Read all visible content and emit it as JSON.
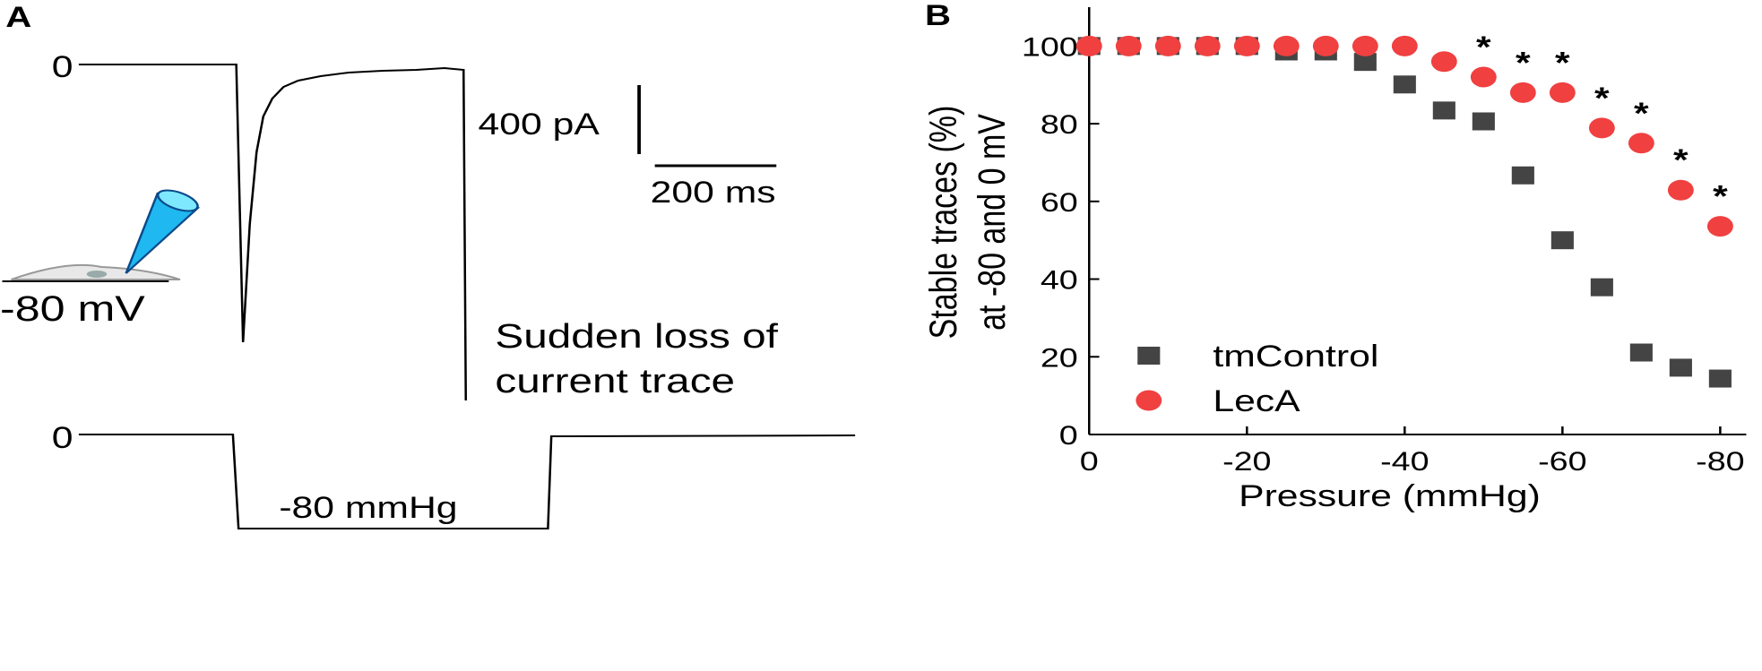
{
  "panel_a": {
    "label": "A",
    "top_zero": "0",
    "scale_current": "400 pA",
    "scale_time": "200 ms",
    "holding": "-80 mV",
    "note": [
      "Sudden loss of",
      "current trace"
    ],
    "bottom_zero": "0",
    "pressure": "-80 mmHg"
  },
  "chart_data": {
    "type": "scatter",
    "panel_label": "B",
    "x_label": "Pressure (mmHg)",
    "y_label": [
      "Stable traces (%)",
      "at -80 and 0 mV"
    ],
    "x": [
      0,
      -5,
      -10,
      -15,
      -20,
      -25,
      -30,
      -35,
      -40,
      -45,
      -50,
      -55,
      -60,
      -65,
      -70,
      -75,
      -80
    ],
    "series": [
      {
        "name": "tmControl",
        "color": "#444444",
        "marker": "square",
        "values": [
          100,
          100,
          100,
          100,
          100,
          98.6,
          98.6,
          95.9,
          90.1,
          83.4,
          80.6,
          66.7,
          50,
          37.9,
          21.1,
          17.2,
          14.4
        ]
      },
      {
        "name": "LecA",
        "color": "#f04040",
        "marker": "circle",
        "values": [
          100,
          100,
          100,
          100,
          100,
          100,
          100,
          100,
          100,
          96,
          92,
          88,
          88,
          78.9,
          75,
          62.9,
          53.6
        ]
      }
    ],
    "annotations": [
      {
        "text": "*",
        "x": -50
      },
      {
        "text": "*",
        "x": -55
      },
      {
        "text": "*",
        "x": -60
      },
      {
        "text": "*",
        "x": -65
      },
      {
        "text": "*",
        "x": -70
      },
      {
        "text": "*",
        "x": -75
      },
      {
        "text": "*",
        "x": -80
      }
    ],
    "xlim": [
      0,
      -83.3
    ],
    "ylim": [
      0,
      110
    ],
    "xticks": [
      0,
      -20,
      -40,
      -60,
      -80
    ],
    "yticks": [
      0,
      20,
      40,
      60,
      80,
      100
    ],
    "legend": "lower left",
    "grid": false
  }
}
